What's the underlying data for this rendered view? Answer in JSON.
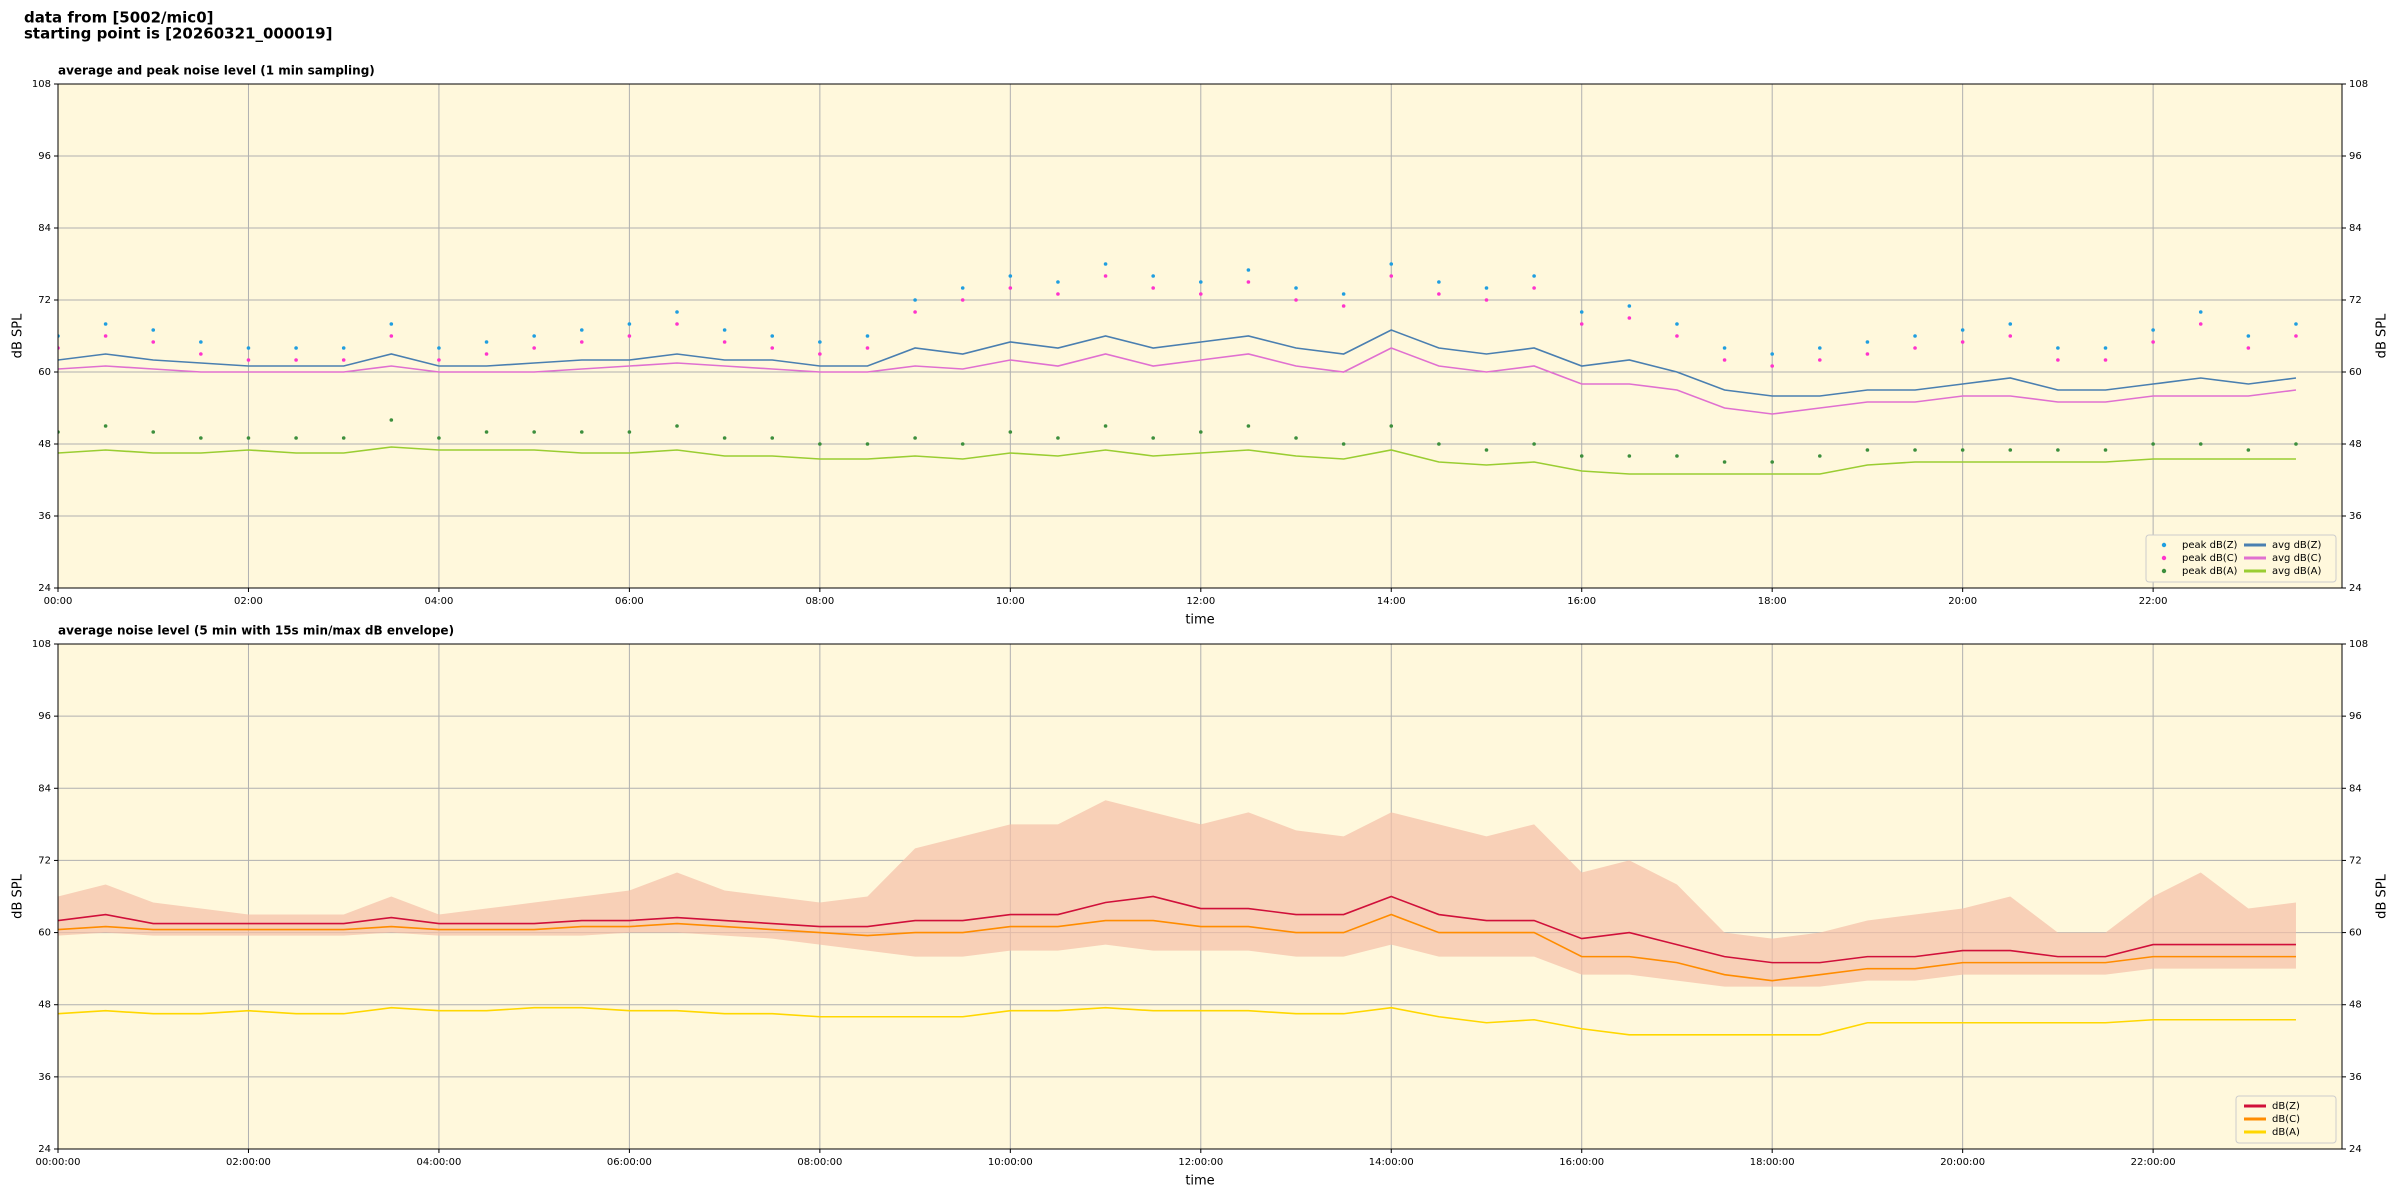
{
  "header": {
    "line1": "data from [5002/mic0]",
    "line2": "starting point is [20260321_000019]"
  },
  "chart_data": [
    {
      "type": "line",
      "title": "average and peak noise level (1 min sampling)",
      "xlabel": "time",
      "ylabel": "dB SPL",
      "y2label": "dB SPL",
      "background": "#fff8dc",
      "grid": true,
      "legend": "lower right",
      "legend_columns": 2,
      "xlim": [
        0,
        1439
      ],
      "ylim": [
        24,
        108
      ],
      "y2lim": [
        24,
        108
      ],
      "xticks": [
        {
          "value": 0,
          "label": "00:00"
        },
        {
          "value": 120,
          "label": "02:00"
        },
        {
          "value": 240,
          "label": "04:00"
        },
        {
          "value": 360,
          "label": "06:00"
        },
        {
          "value": 480,
          "label": "08:00"
        },
        {
          "value": 600,
          "label": "10:00"
        },
        {
          "value": 720,
          "label": "12:00"
        },
        {
          "value": 840,
          "label": "14:00"
        },
        {
          "value": 960,
          "label": "16:00"
        },
        {
          "value": 1080,
          "label": "18:00"
        },
        {
          "value": 1200,
          "label": "20:00"
        },
        {
          "value": 1320,
          "label": "22:00"
        }
      ],
      "yticks": [
        24,
        36,
        48,
        60,
        72,
        84,
        96,
        108
      ],
      "y2ticks": [
        24,
        36,
        48,
        60,
        72,
        84,
        96,
        108
      ],
      "x": [
        0,
        30,
        60,
        90,
        120,
        150,
        180,
        210,
        240,
        270,
        300,
        330,
        360,
        390,
        420,
        450,
        480,
        510,
        540,
        570,
        600,
        630,
        660,
        690,
        720,
        750,
        780,
        810,
        840,
        870,
        900,
        930,
        960,
        990,
        1020,
        1050,
        1080,
        1110,
        1140,
        1170,
        1200,
        1230,
        1260,
        1290,
        1320,
        1350,
        1380,
        1410
      ],
      "series": [
        {
          "name": "peak dB(Z)",
          "type": "scatter",
          "color": "#1f9ee0",
          "values": [
            66,
            68,
            67,
            65,
            64,
            64,
            64,
            68,
            64,
            65,
            66,
            67,
            68,
            70,
            67,
            66,
            65,
            66,
            72,
            74,
            76,
            75,
            78,
            76,
            75,
            77,
            74,
            73,
            78,
            75,
            74,
            76,
            70,
            71,
            68,
            64,
            63,
            64,
            65,
            66,
            67,
            68,
            64,
            64,
            67,
            70,
            66,
            68
          ]
        },
        {
          "name": "peak dB(C)",
          "type": "scatter",
          "color": "#ff33cc",
          "values": [
            64,
            66,
            65,
            63,
            62,
            62,
            62,
            66,
            62,
            63,
            64,
            65,
            66,
            68,
            65,
            64,
            63,
            64,
            70,
            72,
            74,
            73,
            76,
            74,
            73,
            75,
            72,
            71,
            76,
            73,
            72,
            74,
            68,
            69,
            66,
            62,
            61,
            62,
            63,
            64,
            65,
            66,
            62,
            62,
            65,
            68,
            64,
            66
          ]
        },
        {
          "name": "peak dB(A)",
          "type": "scatter",
          "color": "#3d8f3d",
          "values": [
            50,
            51,
            50,
            49,
            49,
            49,
            49,
            52,
            49,
            50,
            50,
            50,
            50,
            51,
            49,
            49,
            48,
            48,
            49,
            48,
            50,
            49,
            51,
            49,
            50,
            51,
            49,
            48,
            51,
            48,
            47,
            48,
            46,
            46,
            46,
            45,
            45,
            46,
            47,
            47,
            47,
            47,
            47,
            47,
            48,
            48,
            47,
            48
          ]
        },
        {
          "name": "avg dB(Z)",
          "type": "line",
          "color": "#4a7fb0",
          "values": [
            62,
            63,
            62,
            61.5,
            61,
            61,
            61,
            63,
            61,
            61,
            61.5,
            62,
            62,
            63,
            62,
            62,
            61,
            61,
            64,
            63,
            65,
            64,
            66,
            64,
            65,
            66,
            64,
            63,
            67,
            64,
            63,
            64,
            61,
            62,
            60,
            57,
            56,
            56,
            57,
            57,
            58,
            59,
            57,
            57,
            58,
            59,
            58,
            59
          ]
        },
        {
          "name": "avg dB(C)",
          "type": "line",
          "color": "#e070d0",
          "values": [
            60.5,
            61,
            60.5,
            60,
            60,
            60,
            60,
            61,
            60,
            60,
            60,
            60.5,
            61,
            61.5,
            61,
            60.5,
            60,
            60,
            61,
            60.5,
            62,
            61,
            63,
            61,
            62,
            63,
            61,
            60,
            64,
            61,
            60,
            61,
            58,
            58,
            57,
            54,
            53,
            54,
            55,
            55,
            56,
            56,
            55,
            55,
            56,
            56,
            56,
            57
          ]
        },
        {
          "name": "avg dB(A)",
          "type": "line",
          "color": "#9acd32",
          "values": [
            46.5,
            47,
            46.5,
            46.5,
            47,
            46.5,
            46.5,
            47.5,
            47,
            47,
            47,
            46.5,
            46.5,
            47,
            46,
            46,
            45.5,
            45.5,
            46,
            45.5,
            46.5,
            46,
            47,
            46,
            46.5,
            47,
            46,
            45.5,
            47,
            45,
            44.5,
            45,
            43.5,
            43,
            43,
            43,
            43,
            43,
            44.5,
            45,
            45,
            45,
            45,
            45,
            45.5,
            45.5,
            45.5,
            45.5
          ]
        }
      ]
    },
    {
      "type": "line",
      "title": "average noise level (5 min with 15s min/max dB envelope)",
      "xlabel": "time",
      "ylabel": "dB SPL",
      "y2label": "dB SPL",
      "background": "#fff8dc",
      "grid": true,
      "legend": "lower right",
      "legend_columns": 1,
      "xlim": [
        0,
        1439
      ],
      "ylim": [
        24,
        108
      ],
      "y2lim": [
        24,
        108
      ],
      "xticks": [
        {
          "value": 0,
          "label": "00:00:00"
        },
        {
          "value": 120,
          "label": "02:00:00"
        },
        {
          "value": 240,
          "label": "04:00:00"
        },
        {
          "value": 360,
          "label": "06:00:00"
        },
        {
          "value": 480,
          "label": "08:00:00"
        },
        {
          "value": 600,
          "label": "10:00:00"
        },
        {
          "value": 720,
          "label": "12:00:00"
        },
        {
          "value": 840,
          "label": "14:00:00"
        },
        {
          "value": 960,
          "label": "16:00:00"
        },
        {
          "value": 1080,
          "label": "18:00:00"
        },
        {
          "value": 1200,
          "label": "20:00:00"
        },
        {
          "value": 1320,
          "label": "22:00:00"
        }
      ],
      "yticks": [
        24,
        36,
        48,
        60,
        72,
        84,
        96,
        108
      ],
      "y2ticks": [
        24,
        36,
        48,
        60,
        72,
        84,
        96,
        108
      ],
      "x": [
        0,
        30,
        60,
        90,
        120,
        150,
        180,
        210,
        240,
        270,
        300,
        330,
        360,
        390,
        420,
        450,
        480,
        510,
        540,
        570,
        600,
        630,
        660,
        690,
        720,
        750,
        780,
        810,
        840,
        870,
        900,
        930,
        960,
        990,
        1020,
        1050,
        1080,
        1110,
        1140,
        1170,
        1200,
        1230,
        1260,
        1290,
        1320,
        1350,
        1380,
        1410
      ],
      "envelope": {
        "color": "#f5bfa6",
        "lower": [
          59.5,
          60,
          59.5,
          59.5,
          59.5,
          59.5,
          59.5,
          60,
          59.5,
          59.5,
          59.5,
          59.5,
          60,
          60,
          59.5,
          59,
          58,
          57,
          56,
          56,
          57,
          57,
          58,
          57,
          57,
          57,
          56,
          56,
          58,
          56,
          56,
          56,
          53,
          53,
          52,
          51,
          51,
          51,
          52,
          52,
          53,
          53,
          53,
          53,
          54,
          54,
          54,
          54
        ],
        "upper": [
          66,
          68,
          65,
          64,
          63,
          63,
          63,
          66,
          63,
          64,
          65,
          66,
          67,
          70,
          67,
          66,
          65,
          66,
          74,
          76,
          78,
          78,
          82,
          80,
          78,
          80,
          77,
          76,
          80,
          78,
          76,
          78,
          70,
          72,
          68,
          60,
          59,
          60,
          62,
          63,
          64,
          66,
          60,
          60,
          66,
          70,
          64,
          65
        ]
      },
      "series": [
        {
          "name": "dB(Z)",
          "type": "line",
          "color": "#d0103a",
          "values": [
            62,
            63,
            61.5,
            61.5,
            61.5,
            61.5,
            61.5,
            62.5,
            61.5,
            61.5,
            61.5,
            62,
            62,
            62.5,
            62,
            61.5,
            61,
            61,
            62,
            62,
            63,
            63,
            65,
            66,
            64,
            64,
            63,
            63,
            66,
            63,
            62,
            62,
            59,
            60,
            58,
            56,
            55,
            55,
            56,
            56,
            57,
            57,
            56,
            56,
            58,
            58,
            58,
            58
          ]
        },
        {
          "name": "dB(C)",
          "type": "line",
          "color": "#ff8c00",
          "values": [
            60.5,
            61,
            60.5,
            60.5,
            60.5,
            60.5,
            60.5,
            61,
            60.5,
            60.5,
            60.5,
            61,
            61,
            61.5,
            61,
            60.5,
            60,
            59.5,
            60,
            60,
            61,
            61,
            62,
            62,
            61,
            61,
            60,
            60,
            63,
            60,
            60,
            60,
            56,
            56,
            55,
            53,
            52,
            53,
            54,
            54,
            55,
            55,
            55,
            55,
            56,
            56,
            56,
            56
          ]
        },
        {
          "name": "dB(A)",
          "type": "line",
          "color": "#ffd700",
          "values": [
            46.5,
            47,
            46.5,
            46.5,
            47,
            46.5,
            46.5,
            47.5,
            47,
            47,
            47.5,
            47.5,
            47,
            47,
            46.5,
            46.5,
            46,
            46,
            46,
            46,
            47,
            47,
            47.5,
            47,
            47,
            47,
            46.5,
            46.5,
            47.5,
            46,
            45,
            45.5,
            44,
            43,
            43,
            43,
            43,
            43,
            45,
            45,
            45,
            45,
            45,
            45,
            45.5,
            45.5,
            45.5,
            45.5
          ]
        }
      ]
    }
  ]
}
